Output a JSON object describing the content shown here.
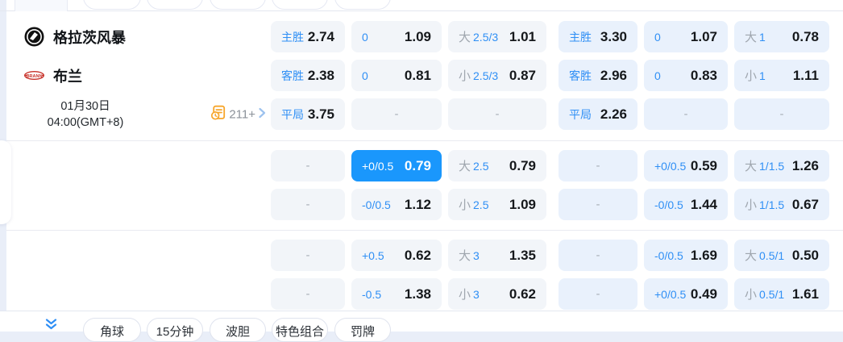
{
  "match": {
    "home_team": "格拉茨风暴",
    "away_team": "布兰",
    "date": "01月30日",
    "time": "04:00(GMT+8)",
    "markets_count": "211+"
  },
  "icons": {
    "home_logo": "team-crest-black-circle",
    "away_logo": "team-crest-red-oval",
    "markets": "stats-clock-icon",
    "markets_arrow": "chevron-right-icon",
    "expand": "double-chevron-down-icon"
  },
  "colors": {
    "accent_blue": "#2f8ff5",
    "selected_cell": "#1a97fc",
    "group_a_bg": "#f2f5f9",
    "group_b_bg": "#e9f1fc",
    "value_text": "#15181b",
    "icon_orange": "#f7a62c"
  },
  "bottom_tabs": [
    "角球",
    "15分钟",
    "波胆",
    "特色组合",
    "罚牌"
  ],
  "sections": [
    {
      "rows": [
        {
          "info": "home",
          "cells": [
            {
              "type": "label",
              "label": "主胜",
              "value": "2.74"
            },
            {
              "type": "label",
              "label": "0",
              "value": "1.09"
            },
            {
              "type": "ou",
              "prefix": "大",
              "line": "2.5/3",
              "value": "1.01"
            },
            {
              "type": "label",
              "label": "主胜",
              "value": "3.30"
            },
            {
              "type": "label",
              "label": "0",
              "value": "1.07"
            },
            {
              "type": "ou",
              "prefix": "大",
              "line": "1",
              "value": "0.78"
            }
          ]
        },
        {
          "info": "away",
          "cells": [
            {
              "type": "label",
              "label": "客胜",
              "value": "2.38"
            },
            {
              "type": "label",
              "label": "0",
              "value": "0.81"
            },
            {
              "type": "ou",
              "prefix": "小",
              "line": "2.5/3",
              "value": "0.87"
            },
            {
              "type": "label",
              "label": "客胜",
              "value": "2.96"
            },
            {
              "type": "label",
              "label": "0",
              "value": "0.83"
            },
            {
              "type": "ou",
              "prefix": "小",
              "line": "1",
              "value": "1.11"
            }
          ]
        },
        {
          "info": "meta",
          "cells": [
            {
              "type": "label",
              "label": "平局",
              "value": "3.75"
            },
            {
              "type": "dash",
              "value": "-"
            },
            {
              "type": "dash",
              "value": "-"
            },
            {
              "type": "label",
              "label": "平局",
              "value": "2.26"
            },
            {
              "type": "dash",
              "value": "-"
            },
            {
              "type": "dash",
              "value": "-"
            }
          ]
        }
      ]
    },
    {
      "rows": [
        {
          "cells": [
            {
              "type": "dash",
              "value": "-"
            },
            {
              "type": "label",
              "label": "+0/0.5",
              "value": "0.79",
              "selected": true
            },
            {
              "type": "ou",
              "prefix": "大",
              "line": "2.5",
              "value": "0.79"
            },
            {
              "type": "dash",
              "value": "-"
            },
            {
              "type": "label",
              "label": "+0/0.5",
              "value": "0.59"
            },
            {
              "type": "ou",
              "prefix": "大",
              "line": "1/1.5",
              "value": "1.26"
            }
          ]
        },
        {
          "cells": [
            {
              "type": "dash",
              "value": "-"
            },
            {
              "type": "label",
              "label": "-0/0.5",
              "value": "1.12"
            },
            {
              "type": "ou",
              "prefix": "小",
              "line": "2.5",
              "value": "1.09"
            },
            {
              "type": "dash",
              "value": "-"
            },
            {
              "type": "label",
              "label": "-0/0.5",
              "value": "1.44"
            },
            {
              "type": "ou",
              "prefix": "小",
              "line": "1/1.5",
              "value": "0.67"
            }
          ]
        }
      ]
    },
    {
      "rows": [
        {
          "cells": [
            {
              "type": "dash",
              "value": "-"
            },
            {
              "type": "label",
              "label": "+0.5",
              "value": "0.62"
            },
            {
              "type": "ou",
              "prefix": "大",
              "line": "3",
              "value": "1.35"
            },
            {
              "type": "dash",
              "value": "-"
            },
            {
              "type": "label",
              "label": "-0/0.5",
              "value": "1.69"
            },
            {
              "type": "ou",
              "prefix": "大",
              "line": "0.5/1",
              "value": "0.50"
            }
          ]
        },
        {
          "cells": [
            {
              "type": "dash",
              "value": "-"
            },
            {
              "type": "label",
              "label": "-0.5",
              "value": "1.38"
            },
            {
              "type": "ou",
              "prefix": "小",
              "line": "3",
              "value": "0.62"
            },
            {
              "type": "dash",
              "value": "-"
            },
            {
              "type": "label",
              "label": "+0/0.5",
              "value": "0.49"
            },
            {
              "type": "ou",
              "prefix": "小",
              "line": "0.5/1",
              "value": "1.61"
            }
          ]
        }
      ]
    }
  ]
}
